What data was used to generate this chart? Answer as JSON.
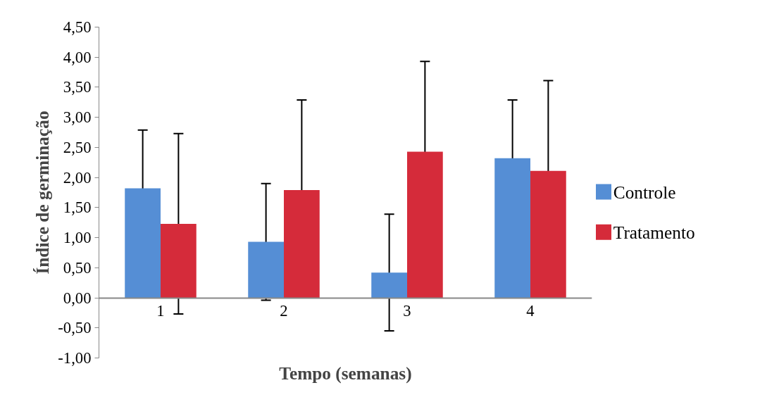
{
  "chart_data": {
    "type": "bar",
    "xlabel": "Tempo (semanas)",
    "ylabel": "Índice de germinação",
    "categories": [
      "1",
      "2",
      "3",
      "4"
    ],
    "series": [
      {
        "name": "Controle",
        "color": "#558ed5",
        "values": [
          1.82,
          0.93,
          0.42,
          2.32
        ],
        "errors": [
          0.97,
          0.97,
          0.97,
          0.97
        ]
      },
      {
        "name": "Tratamento",
        "color": "#d52b3a",
        "values": [
          1.23,
          1.79,
          2.43,
          2.11
        ],
        "errors": [
          1.5,
          1.5,
          1.5,
          1.5
        ]
      }
    ],
    "ylim": [
      -1.0,
      4.5
    ],
    "yticks": [
      {
        "value": -1.0,
        "label": "-1,00"
      },
      {
        "value": -0.5,
        "label": "-0,50"
      },
      {
        "value": 0,
        "label": "0,00"
      },
      {
        "value": 0.5,
        "label": "0,50"
      },
      {
        "value": 1.0,
        "label": "1,00"
      },
      {
        "value": 1.5,
        "label": "1,50"
      },
      {
        "value": 2.0,
        "label": "2,00"
      },
      {
        "value": 2.5,
        "label": "2,50"
      },
      {
        "value": 3.0,
        "label": "3,00"
      },
      {
        "value": 3.5,
        "label": "3,50"
      },
      {
        "value": 4.0,
        "label": "4,00"
      },
      {
        "value": 4.5,
        "label": "4,50"
      }
    ],
    "grid": false,
    "legend": "right"
  }
}
